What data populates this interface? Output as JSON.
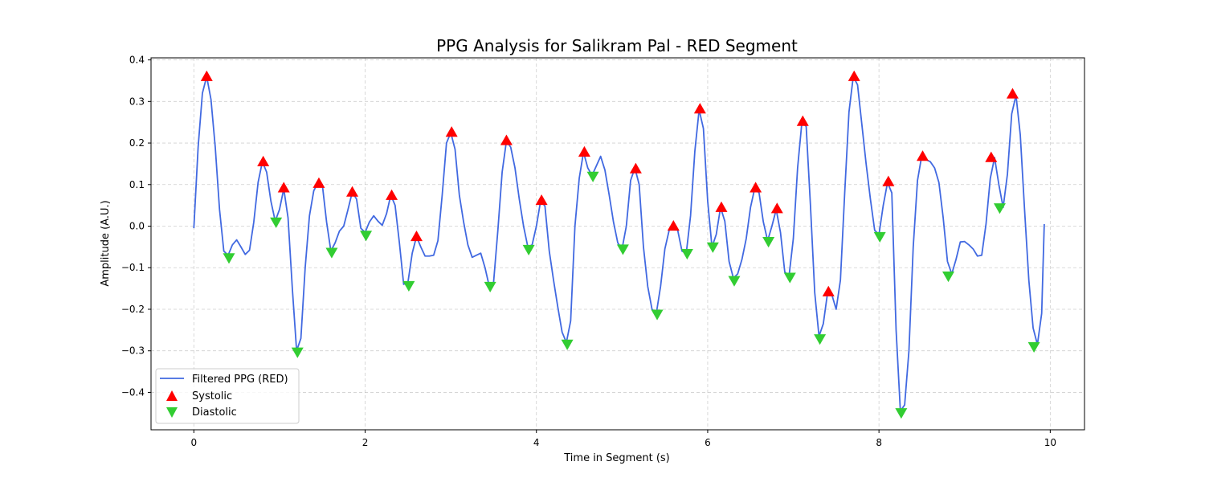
{
  "chart_data": {
    "type": "line",
    "title": "PPG Analysis for Salikram Pal - RED Segment",
    "xlabel": "Time in Segment (s)",
    "ylabel": "Amplitude (A.U.)",
    "xlim": [
      -0.5,
      10.4
    ],
    "ylim": [
      -0.49,
      0.405
    ],
    "xticks": [
      0,
      2,
      4,
      6,
      8,
      10
    ],
    "xtick_labels": [
      "0",
      "2",
      "4",
      "6",
      "8",
      "10"
    ],
    "yticks": [
      -0.4,
      -0.3,
      -0.2,
      -0.1,
      0.0,
      0.1,
      0.2,
      0.3,
      0.4
    ],
    "ytick_labels": [
      "−0.4",
      "−0.3",
      "−0.2",
      "−0.1",
      "0.0",
      "0.1",
      "0.2",
      "0.3",
      "0.4"
    ],
    "grid": true,
    "legend_position": "lower-left",
    "series": [
      {
        "name": "Filtered PPG (RED)",
        "color": "#4169e1",
        "x": [
          0.0,
          0.05,
          0.1,
          0.15,
          0.2,
          0.25,
          0.3,
          0.35,
          0.4,
          0.45,
          0.5,
          0.55,
          0.6,
          0.65,
          0.7,
          0.75,
          0.8,
          0.85,
          0.9,
          0.95,
          1.0,
          1.05,
          1.1,
          1.15,
          1.2,
          1.25,
          1.3,
          1.35,
          1.4,
          1.45,
          1.5,
          1.55,
          1.6,
          1.65,
          1.7,
          1.75,
          1.8,
          1.85,
          1.9,
          1.95,
          2.0,
          2.05,
          2.1,
          2.15,
          2.2,
          2.25,
          2.3,
          2.35,
          2.4,
          2.45,
          2.5,
          2.55,
          2.6,
          2.65,
          2.7,
          2.75,
          2.8,
          2.85,
          2.9,
          2.95,
          3.0,
          3.05,
          3.1,
          3.15,
          3.2,
          3.25,
          3.3,
          3.35,
          3.4,
          3.45,
          3.5,
          3.55,
          3.6,
          3.65,
          3.7,
          3.75,
          3.8,
          3.85,
          3.9,
          3.95,
          4.0,
          4.05,
          4.1,
          4.15,
          4.2,
          4.25,
          4.3,
          4.35,
          4.4,
          4.45,
          4.5,
          4.55,
          4.6,
          4.65,
          4.7,
          4.75,
          4.8,
          4.85,
          4.9,
          4.95,
          5.0,
          5.05,
          5.1,
          5.15,
          5.2,
          5.25,
          5.3,
          5.35,
          5.4,
          5.45,
          5.5,
          5.55,
          5.6,
          5.65,
          5.7,
          5.75,
          5.8,
          5.85,
          5.9,
          5.95,
          6.0,
          6.05,
          6.1,
          6.15,
          6.2,
          6.25,
          6.3,
          6.35,
          6.4,
          6.45,
          6.5,
          6.55,
          6.6,
          6.65,
          6.7,
          6.75,
          6.8,
          6.85,
          6.9,
          6.95,
          7.0,
          7.05,
          7.1,
          7.15,
          7.2,
          7.25,
          7.3,
          7.35,
          7.4,
          7.45,
          7.5,
          7.55,
          7.6,
          7.65,
          7.7,
          7.75,
          7.8,
          7.85,
          7.9,
          7.95,
          8.0,
          8.05,
          8.1,
          8.15,
          8.2,
          8.25,
          8.3,
          8.35,
          8.4,
          8.45,
          8.5,
          8.55,
          8.6,
          8.65,
          8.7,
          8.75,
          8.8,
          8.85,
          8.9,
          8.95,
          9.0,
          9.05,
          9.1,
          9.15,
          9.2,
          9.25,
          9.3,
          9.35,
          9.4,
          9.45,
          9.5,
          9.55,
          9.6,
          9.65,
          9.7,
          9.75,
          9.8,
          9.85,
          9.9,
          9.93
        ],
        "y": [
          -0.005,
          0.19,
          0.32,
          0.36,
          0.305,
          0.19,
          0.04,
          -0.06,
          -0.07,
          -0.045,
          -0.033,
          -0.05,
          -0.068,
          -0.058,
          0.01,
          0.105,
          0.155,
          0.13,
          0.06,
          0.012,
          0.04,
          0.09,
          0.02,
          -0.15,
          -0.3,
          -0.27,
          -0.1,
          0.025,
          0.085,
          0.105,
          0.1,
          0.01,
          -0.06,
          -0.04,
          -0.012,
          0.0,
          0.04,
          0.082,
          0.065,
          -0.005,
          -0.015,
          0.01,
          0.025,
          0.012,
          0.002,
          0.03,
          0.075,
          0.05,
          -0.04,
          -0.14,
          -0.135,
          -0.065,
          -0.025,
          -0.05,
          -0.072,
          -0.072,
          -0.07,
          -0.035,
          0.075,
          0.2,
          0.225,
          0.185,
          0.075,
          0.01,
          -0.045,
          -0.075,
          -0.07,
          -0.065,
          -0.1,
          -0.145,
          -0.135,
          -0.01,
          0.13,
          0.205,
          0.19,
          0.14,
          0.065,
          0.0,
          -0.05,
          -0.045,
          0.0,
          0.062,
          0.048,
          -0.06,
          -0.13,
          -0.195,
          -0.255,
          -0.28,
          -0.228,
          0.0,
          0.115,
          0.178,
          0.14,
          0.122,
          0.145,
          0.168,
          0.135,
          0.075,
          0.01,
          -0.04,
          -0.055,
          0.0,
          0.11,
          0.14,
          0.1,
          -0.05,
          -0.145,
          -0.2,
          -0.21,
          -0.145,
          -0.055,
          -0.01,
          0.0,
          -0.01,
          -0.06,
          -0.065,
          0.025,
          0.18,
          0.28,
          0.235,
          0.06,
          -0.05,
          -0.02,
          0.045,
          0.012,
          -0.085,
          -0.125,
          -0.115,
          -0.08,
          -0.03,
          0.045,
          0.092,
          0.08,
          0.01,
          -0.035,
          0.0,
          0.04,
          -0.015,
          -0.11,
          -0.12,
          -0.03,
          0.14,
          0.25,
          0.24,
          0.05,
          -0.16,
          -0.265,
          -0.235,
          -0.16,
          -0.165,
          -0.2,
          -0.13,
          0.08,
          0.275,
          0.36,
          0.34,
          0.245,
          0.15,
          0.065,
          -0.01,
          -0.02,
          0.05,
          0.105,
          0.08,
          -0.25,
          -0.445,
          -0.43,
          -0.3,
          -0.05,
          0.11,
          0.17,
          0.16,
          0.155,
          0.14,
          0.105,
          0.02,
          -0.085,
          -0.115,
          -0.08,
          -0.038,
          -0.037,
          -0.045,
          -0.055,
          -0.072,
          -0.07,
          0.005,
          0.115,
          0.165,
          0.1,
          0.045,
          0.125,
          0.27,
          0.315,
          0.22,
          0.04,
          -0.13,
          -0.245,
          -0.285,
          -0.21,
          0.005
        ]
      },
      {
        "name": "Systolic",
        "color": "#ff0000",
        "marker": "triangle-up",
        "x": [
          0.15,
          0.81,
          1.05,
          1.46,
          1.85,
          2.31,
          2.6,
          3.01,
          3.65,
          4.06,
          4.56,
          5.16,
          5.6,
          5.91,
          6.16,
          6.56,
          6.81,
          7.11,
          7.41,
          7.71,
          8.11,
          8.51,
          9.31,
          9.56
        ],
        "y": [
          0.36,
          0.155,
          0.092,
          0.103,
          0.082,
          0.074,
          -0.025,
          0.226,
          0.206,
          0.062,
          0.178,
          0.138,
          0.0,
          0.282,
          0.045,
          0.092,
          0.042,
          0.252,
          -0.158,
          0.36,
          0.107,
          0.168,
          0.165,
          0.318
        ]
      },
      {
        "name": "Diastolic",
        "color": "#32cd32",
        "marker": "triangle-down",
        "x": [
          0.41,
          0.96,
          1.21,
          1.61,
          2.01,
          2.51,
          3.46,
          3.91,
          4.36,
          4.66,
          5.01,
          5.41,
          5.76,
          6.06,
          6.31,
          6.71,
          6.96,
          7.31,
          8.01,
          8.26,
          8.81,
          9.41,
          9.81
        ],
        "y": [
          -0.076,
          0.01,
          -0.303,
          -0.063,
          -0.022,
          -0.143,
          -0.145,
          -0.056,
          -0.284,
          0.12,
          -0.055,
          -0.212,
          -0.066,
          -0.05,
          -0.131,
          -0.037,
          -0.123,
          -0.271,
          -0.025,
          -0.449,
          -0.12,
          0.044,
          -0.29
        ]
      }
    ]
  }
}
